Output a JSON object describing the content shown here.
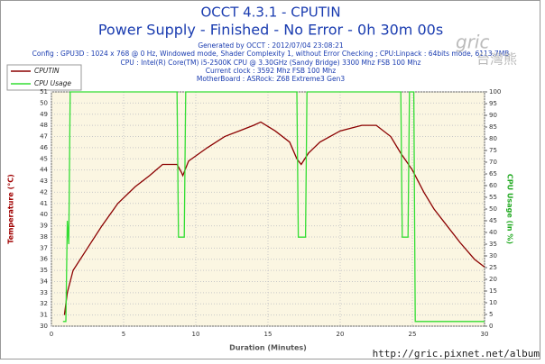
{
  "chart_data": {
    "type": "line",
    "title": "OCCT 4.3.1 - CPUTIN",
    "subtitle": "Power Supply - Finished - No Error - 0h 30m 00s",
    "info": [
      "Generated by OCCT : 2012/07/04 23:08:21",
      "Config : GPU3D : 1024 x 768 @ 0 Hz, Windowed mode, Shader Complexity 1, without Error Checking ; CPU:Linpack : 64bits mode, 6113.7MB",
      "CPU : Intel(R) Core(TM) i5-2500K CPU @ 3.30GHz (Sandy Bridge) 3300 Mhz FSB 100 Mhz",
      "Current clock : 3592 Mhz FSB 100 Mhz",
      "MotherBoard : ASRock: Z68 Extreme3 Gen3"
    ],
    "x_label": "Duration (Minutes)",
    "y_label": "Temperature (°C)",
    "y2_label": "CPU Usage (in %)",
    "xlim": [
      0,
      30
    ],
    "xticks": [
      0,
      5,
      10,
      15,
      20,
      25,
      30
    ],
    "ylim": [
      30,
      51
    ],
    "yticks": [
      30,
      31,
      32,
      33,
      34,
      35,
      36,
      37,
      38,
      39,
      40,
      41,
      42,
      43,
      44,
      45,
      46,
      47,
      48,
      49,
      50,
      51
    ],
    "y2lim": [
      0,
      100
    ],
    "y2ticks": [
      0,
      5,
      10,
      15,
      20,
      25,
      30,
      35,
      40,
      45,
      50,
      55,
      60,
      65,
      70,
      75,
      80,
      85,
      90,
      95,
      100
    ],
    "grid": true,
    "legend": "top-left",
    "series": [
      {
        "name": "CPUTIN",
        "color": "#8b0000",
        "x": [
          0.9,
          1.1,
          1.5,
          2.5,
          3.5,
          4.6,
          5.8,
          6.8,
          7.7,
          8.7,
          9.0,
          9.1,
          9.5,
          10.8,
          12,
          13,
          14,
          14.5,
          15.5,
          16.5,
          17,
          17.3,
          17.8,
          18.6,
          20,
          21.5,
          22.5,
          23.5,
          24.2,
          25,
          25.8,
          26.5,
          27.4,
          28.3,
          29.3,
          30
        ],
        "values": [
          31,
          33,
          35,
          37,
          39,
          41,
          42.5,
          43.5,
          44.5,
          44.5,
          43.8,
          43.5,
          44.8,
          46,
          47,
          47.5,
          48,
          48.3,
          47.5,
          46.5,
          45,
          44.5,
          45.5,
          46.5,
          47.5,
          48,
          48,
          47,
          45.5,
          44,
          42,
          40.5,
          39,
          37.5,
          36,
          35.3
        ]
      },
      {
        "name": "CPU Usage",
        "color": "#33dd33",
        "axis": "y2",
        "x": [
          0.8,
          1.0,
          1.1,
          1.2,
          1.3,
          1.4,
          8.7,
          8.8,
          9.2,
          9.3,
          17.0,
          17.1,
          17.6,
          17.7,
          24.2,
          24.3,
          24.7,
          24.8,
          25.1,
          25.2,
          30
        ],
        "values": [
          2,
          2,
          45,
          35,
          100,
          100,
          100,
          38,
          38,
          100,
          100,
          38,
          38,
          100,
          100,
          38,
          38,
          100,
          100,
          2,
          2
        ]
      }
    ],
    "watermark": {
      "logo": "gric",
      "logo_cjk": "台灣熊",
      "url": "http://gric.pixnet.net/album"
    }
  }
}
